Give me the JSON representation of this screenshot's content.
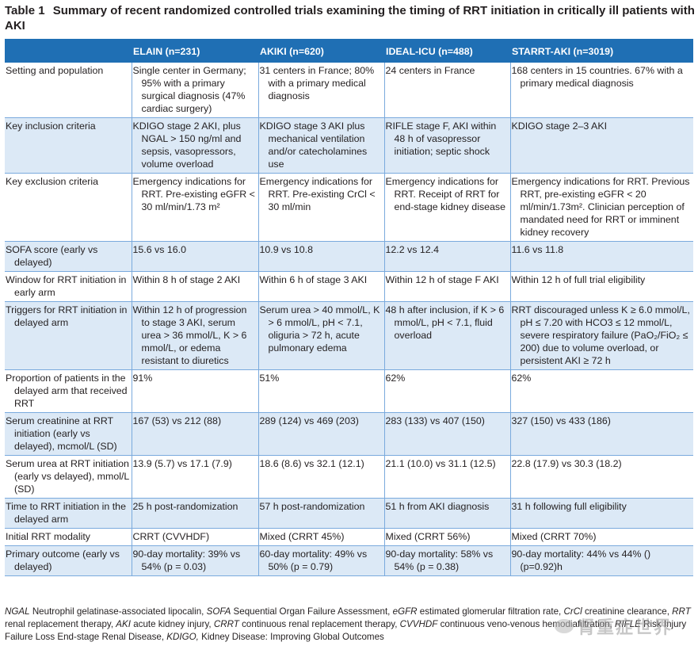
{
  "caption": {
    "label": "Table 1",
    "text": "Summary of recent randomized controlled trials examining the timing of RRT initiation in critically ill patients with AKI"
  },
  "header": [
    "",
    "ELAIN (n=231)",
    "AKIKI (n=620)",
    "IDEAL-ICU (n=488)",
    "STARRT-AKI (n=3019)"
  ],
  "rows": [
    {
      "label": "Setting and population",
      "cells": [
        "Single center in Germany; 95% with a primary surgical diagnosis (47% cardiac surgery)",
        "31 centers in France; 80% with a primary medical diagnosis",
        "24 centers in France",
        "168 centers in 15 countries. 67% with a primary medical diagnosis"
      ]
    },
    {
      "label": "Key inclusion criteria",
      "cells": [
        "KDIGO stage 2 AKI, plus NGAL > 150 ng/ml and sepsis, vasopressors, volume overload",
        "KDIGO stage 3 AKI plus mechanical ventilation and/or catecholamines use",
        "RIFLE stage F, AKI within 48 h of vasopressor initiation; septic shock",
        "KDIGO stage 2–3 AKI"
      ]
    },
    {
      "label": "Key exclusion criteria",
      "cells": [
        "Emergency indications for RRT. Pre-existing eGFR < 30 ml/min/1.73 m²",
        "Emergency indications for RRT. Pre-existing CrCl < 30 ml/min",
        "Emergency indications for RRT. Receipt of RRT for end-stage kidney disease",
        "Emergency indications for RRT. Previous RRT, pre-existing eGFR < 20 ml/min/1.73m². Clinician perception of mandated need for RRT or imminent kidney recovery"
      ]
    },
    {
      "label": "SOFA score (early vs delayed)",
      "cells": [
        "15.6 vs 16.0",
        "10.9 vs 10.8",
        "12.2 vs 12.4",
        "11.6 vs 11.8"
      ]
    },
    {
      "label": "Window for RRT initiation in early arm",
      "cells": [
        "Within 8 h of stage 2 AKI",
        "Within 6 h of stage 3 AKI",
        "Within 12 h of stage F AKI",
        "Within 12 h of full trial eligibility"
      ]
    },
    {
      "label": "Triggers for RRT initiation in delayed arm",
      "cells": [
        "Within 12 h of progression to stage 3 AKI, serum urea > 36 mmol/L, K > 6 mmol/L, or edema resistant to diuretics",
        "Serum urea > 40 mmol/L, K > 6 mmol/L, pH < 7.1, oliguria > 72 h, acute pulmonary edema",
        "48 h after inclusion, if K > 6 mmol/L, pH < 7.1, fluid overload",
        "RRT discouraged unless K ≥ 6.0 mmol/L, pH ≤ 7.20 with HCO3 ≤ 12 mmol/L, severe respiratory failure (PaO₂/FiO₂ ≤ 200) due to volume overload, or persistent AKI ≥ 72 h"
      ]
    },
    {
      "label": "Proportion of patients in the delayed arm that received RRT",
      "cells": [
        "91%",
        "51%",
        "62%",
        "62%"
      ]
    },
    {
      "label": "Serum creatinine at RRT initiation (early vs delayed), mcmol/L (SD)",
      "cells": [
        "167 (53) vs 212 (88)",
        "289 (124) vs 469 (203)",
        "283 (133) vs 407 (150)",
        "327 (150) vs 433 (186)"
      ]
    },
    {
      "label": "Serum urea at RRT initiation (early vs delayed), mmol/L (SD)",
      "cells": [
        "13.9 (5.7) vs 17.1 (7.9)",
        "18.6 (8.6) vs 32.1 (12.1)",
        "21.1 (10.0) vs 31.1 (12.5)",
        "22.8 (17.9) vs 30.3 (18.2)"
      ]
    },
    {
      "label": "Time to RRT initiation in the delayed arm",
      "cells": [
        "25 h post-randomization",
        "57 h post-randomization",
        "51 h from AKI diagnosis",
        "31 h following full eligibility"
      ]
    },
    {
      "label": "Initial RRT modality",
      "cells": [
        "CRRT (CVVHDF)",
        "Mixed (CRRT 45%)",
        "Mixed (CRRT 56%)",
        "Mixed (CRRT 70%)"
      ]
    },
    {
      "label": "Primary outcome (early vs delayed)",
      "cells": [
        "90-day mortality: 39% vs 54% (p = 0.03)",
        "60-day mortality: 49% vs 50% (p = 0.79)",
        "90-day mortality: 58% vs 54% (p = 0.38)",
        "90-day mortality: 44% vs 44% () (p=0.92)h"
      ]
    }
  ],
  "footnote": {
    "items": [
      {
        "abbr": "NGAL",
        "def": "Neutrophil gelatinase-associated lipocalin,"
      },
      {
        "abbr": "SOFA",
        "def": "Sequential Organ Failure Assessment,"
      },
      {
        "abbr": "eGFR",
        "def": "estimated glomerular filtration rate,"
      },
      {
        "abbr": "CrCl",
        "def": "creatinine clearance,"
      },
      {
        "abbr": "RRT",
        "def": "renal replacement therapy,"
      },
      {
        "abbr": "AKI",
        "def": "acute kidney injury,"
      },
      {
        "abbr": "CRRT",
        "def": "continuous renal replacement therapy,"
      },
      {
        "abbr": "CVVHDF",
        "def": "continuous veno-venous hemodiafiltration,"
      },
      {
        "abbr": "RIFLE",
        "def": "Risk Injury Failure Loss End-stage Renal Disease,"
      },
      {
        "abbr": "KDIGO,",
        "def": "Kidney Disease: Improving Global Outcomes"
      }
    ]
  },
  "watermark": {
    "text": "肾重症世界"
  }
}
